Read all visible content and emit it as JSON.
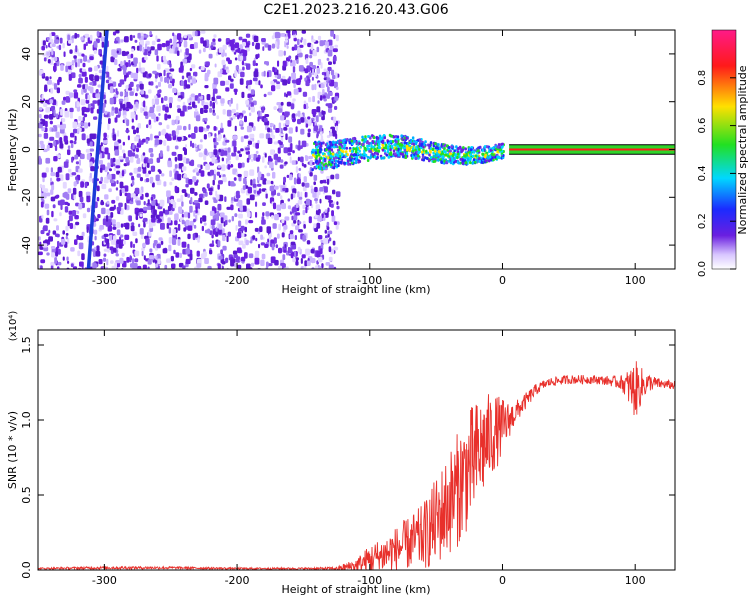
{
  "title": "C2E1.2023.216.20.43.G06",
  "colors": {
    "spectrum_dots": "#6a1fe0",
    "track_line": "#1b3bd8",
    "snr_line": "#e8302b",
    "band_green": "#2fd42a",
    "band_red": "#ff1a1a"
  },
  "chart_data": [
    {
      "type": "heatmap",
      "title": "C2E1.2023.216.20.43.G06",
      "xlabel": "Height of straight line (km)",
      "ylabel": "Frequency (Hz)",
      "xlim": [
        -350,
        130
      ],
      "ylim": [
        -50,
        50
      ],
      "x_ticks": [
        -300,
        -200,
        -100,
        0,
        100
      ],
      "y_ticks": [
        -40,
        -20,
        0,
        20,
        40
      ],
      "x_tick_labels": [
        "-300",
        "-200",
        "-100",
        "0",
        "100"
      ],
      "y_tick_labels": [
        "-40",
        "-20",
        "0",
        "20",
        "40"
      ],
      "colorbar": {
        "label": "Normalized spectral amplitude",
        "range": [
          0.0,
          1.0
        ],
        "ticks": [
          0.0,
          0.2,
          0.4,
          0.6,
          0.8
        ],
        "tick_labels": [
          "0.0",
          "0.2",
          "0.4",
          "0.6",
          "0.8"
        ],
        "colormap": [
          "#ffffff",
          "#6a1fe0",
          "#1b2bff",
          "#00d8ff",
          "#22e022",
          "#ffe000",
          "#ff1a1a",
          "#ff1a88"
        ]
      },
      "features": {
        "noise_region_x": [
          -350,
          -125
        ],
        "signal_onset_km": -145,
        "carrier_frequency_hz": 0,
        "steady_carrier_from_km": 5,
        "carrier_band_hz": [
          -2,
          2
        ],
        "slanted_line": [
          {
            "x": -298,
            "y": 50
          },
          {
            "x": -312,
            "y": -50
          }
        ]
      },
      "grid": false
    },
    {
      "type": "line",
      "xlabel": "Height of straight line (km)",
      "ylabel": "SNR (10 * v/v)",
      "y_multiplier": "(x10⁴)",
      "xlim": [
        -350,
        130
      ],
      "ylim": [
        0,
        1.6
      ],
      "x_ticks": [
        -300,
        -200,
        -100,
        0,
        100
      ],
      "y_ticks": [
        0.0,
        0.5,
        1.0,
        1.5
      ],
      "x_tick_labels": [
        "-300",
        "-200",
        "-100",
        "0",
        "100"
      ],
      "y_tick_labels": [
        "0.0",
        "0.5",
        "1.0",
        "1.5"
      ],
      "grid": false,
      "series": [
        {
          "x": [
            -350,
            -300,
            -250,
            -200,
            -150,
            -125,
            -110,
            -100,
            -90,
            -80,
            -70,
            -60,
            -50,
            -40,
            -35,
            -30,
            -25,
            -20,
            -15,
            -10,
            -5,
            0,
            5,
            10,
            15,
            20,
            25,
            30,
            35,
            40,
            50,
            60,
            70,
            80,
            90,
            95,
            100,
            105,
            110,
            120,
            130
          ],
          "y": [
            0.01,
            0.015,
            0.015,
            0.01,
            0.01,
            0.01,
            0.03,
            0.07,
            0.1,
            0.14,
            0.18,
            0.22,
            0.32,
            0.45,
            0.52,
            0.6,
            0.68,
            0.75,
            0.82,
            0.88,
            0.92,
            0.95,
            1.0,
            1.05,
            1.1,
            1.15,
            1.2,
            1.23,
            1.25,
            1.26,
            1.27,
            1.27,
            1.27,
            1.26,
            1.25,
            1.22,
            1.2,
            1.23,
            1.25,
            1.24,
            1.23
          ],
          "noise_amplitude": [
            0.005,
            0.01,
            0.008,
            0.006,
            0.006,
            0.01,
            0.05,
            0.1,
            0.12,
            0.15,
            0.18,
            0.22,
            0.3,
            0.35,
            0.38,
            0.4,
            0.4,
            0.38,
            0.35,
            0.3,
            0.25,
            0.2,
            0.12,
            0.08,
            0.06,
            0.05,
            0.04,
            0.03,
            0.03,
            0.03,
            0.03,
            0.03,
            0.03,
            0.03,
            0.05,
            0.12,
            0.2,
            0.12,
            0.06,
            0.03,
            0.03
          ]
        }
      ]
    }
  ]
}
